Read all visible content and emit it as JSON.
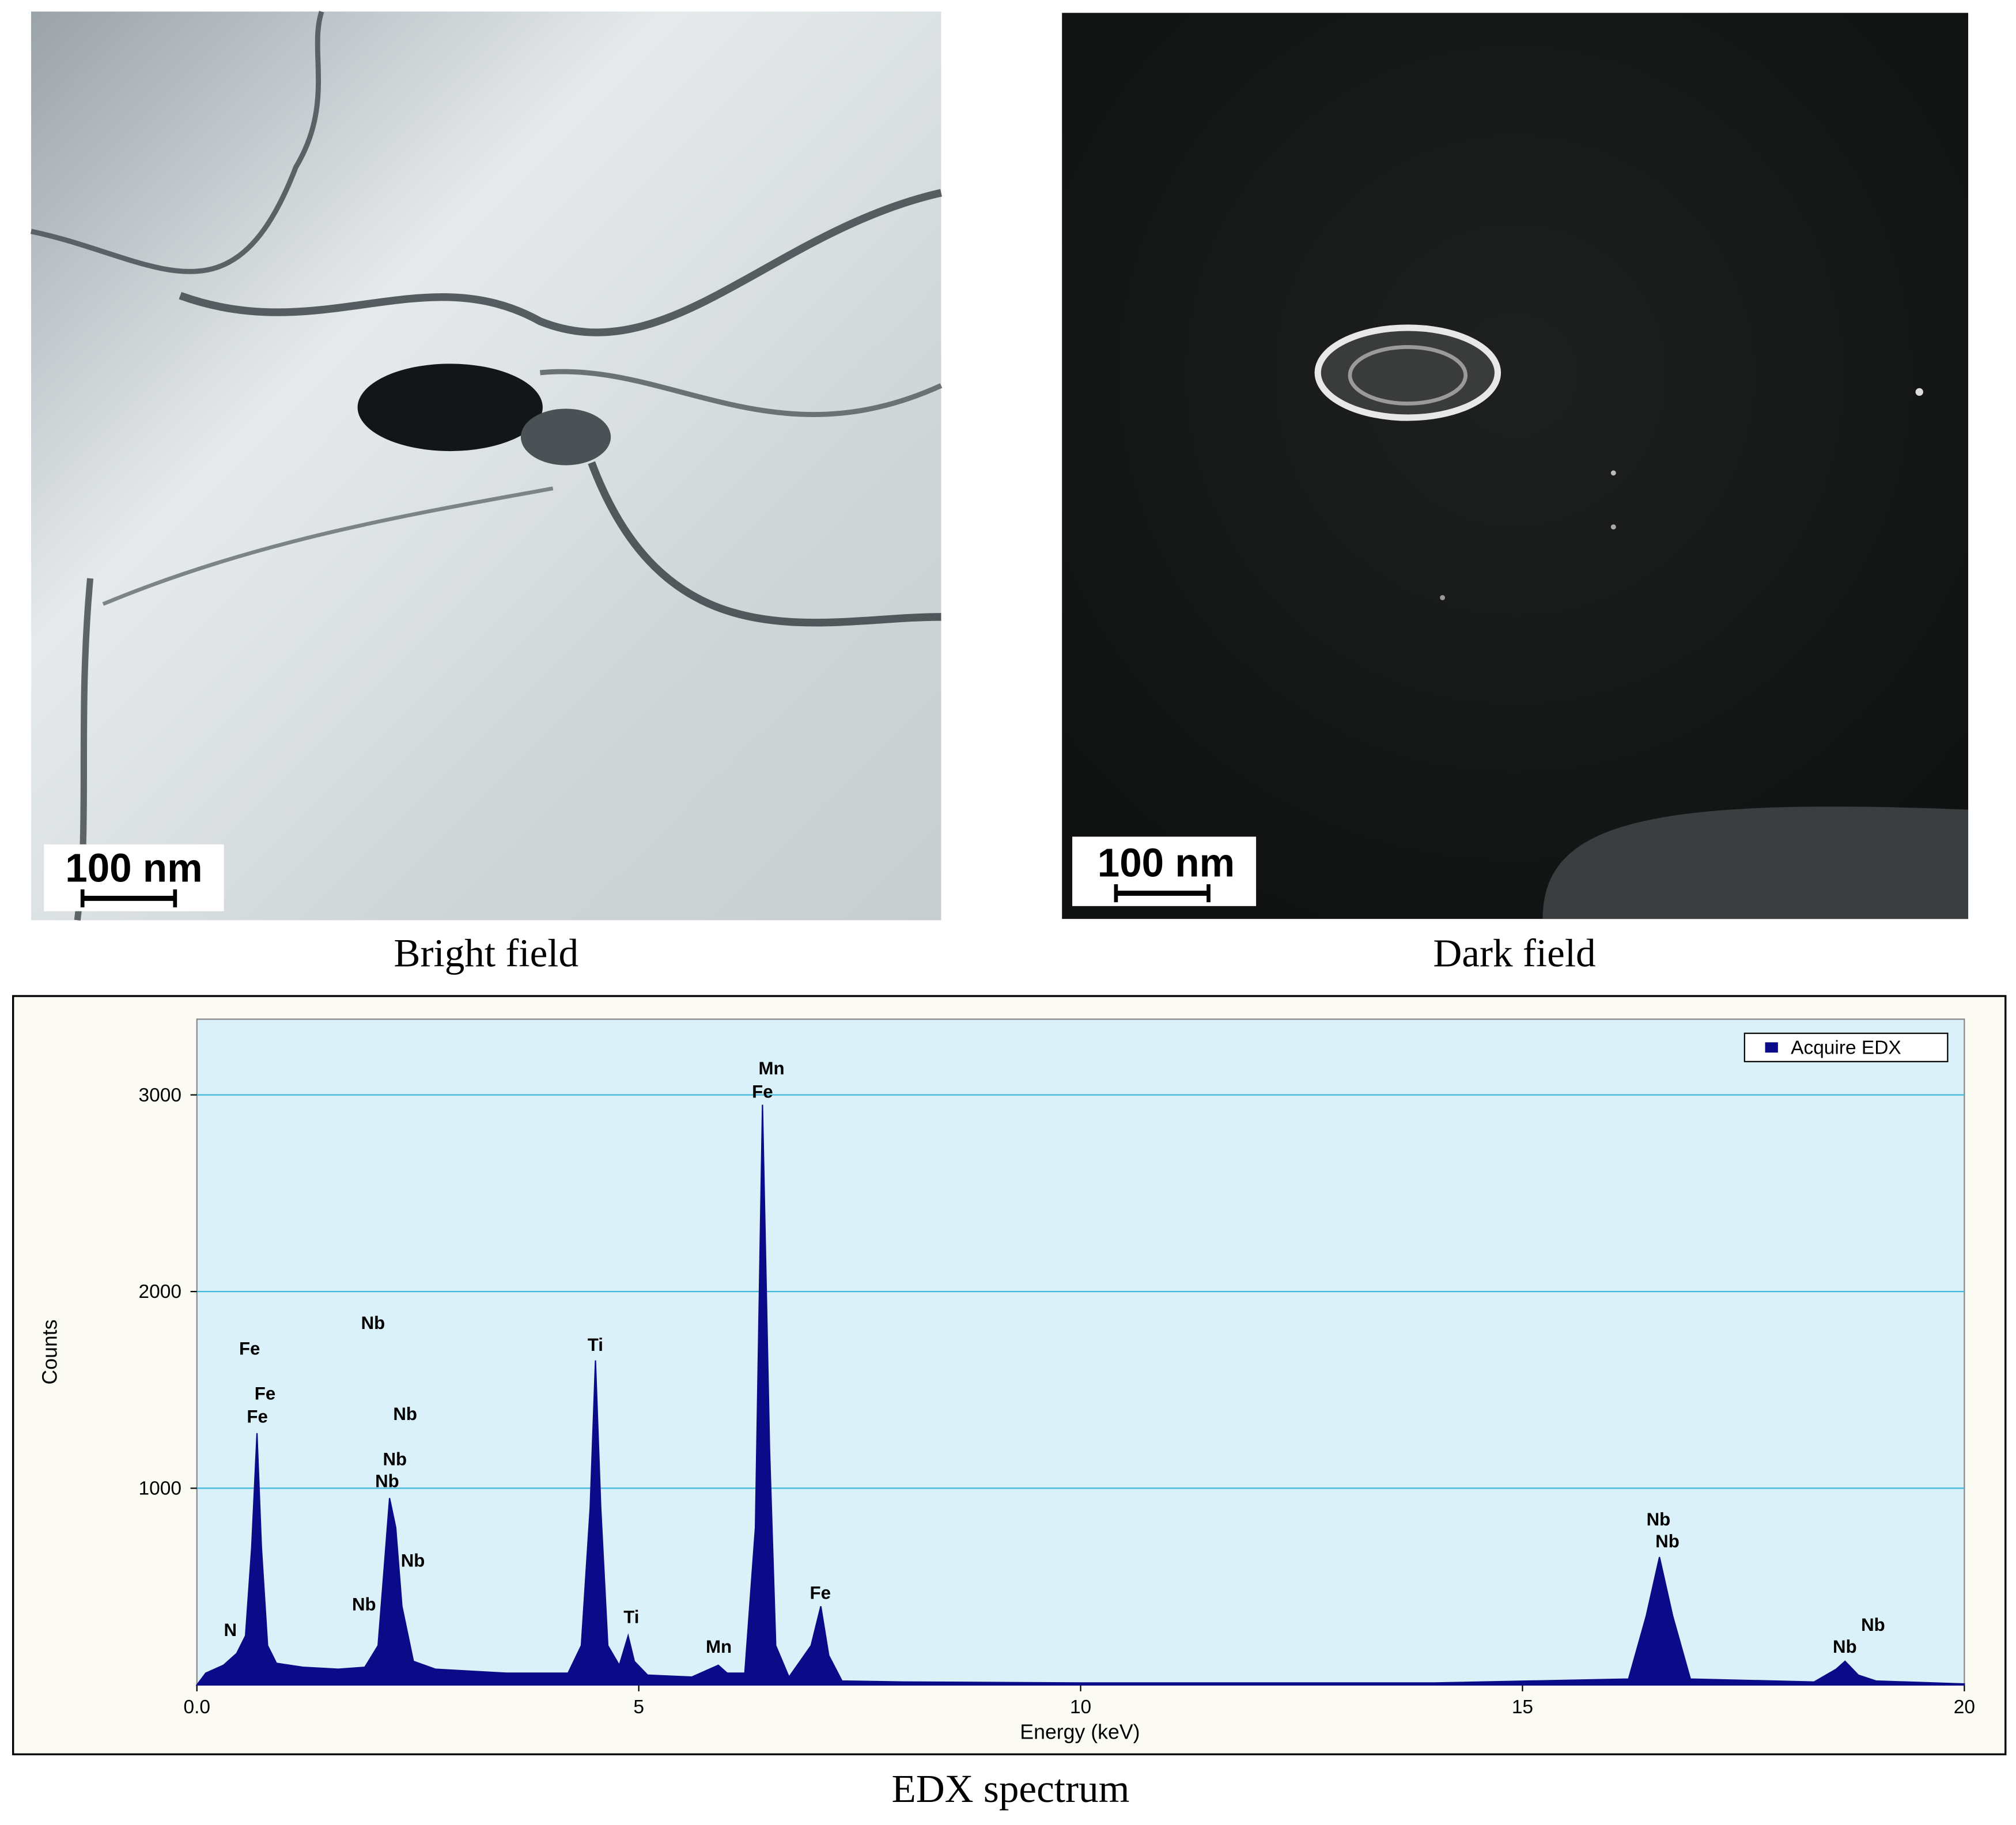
{
  "panels": [
    {
      "scale_bar": "100 nm",
      "caption": "Bright field"
    },
    {
      "scale_bar": "100 nm",
      "caption": "Dark field"
    }
  ],
  "spectrum_caption": "EDX spectrum",
  "chart_data": {
    "type": "area",
    "x_label": "Energy (keV)",
    "y_label": "Counts",
    "x": [
      0.0,
      0.1,
      0.3,
      0.45,
      0.55,
      0.62,
      0.68,
      0.73,
      0.8,
      0.9,
      1.2,
      1.6,
      1.9,
      2.05,
      2.12,
      2.18,
      2.25,
      2.32,
      2.45,
      2.7,
      3.5,
      4.2,
      4.35,
      4.45,
      4.51,
      4.57,
      4.65,
      4.78,
      4.88,
      4.95,
      5.1,
      5.6,
      5.9,
      6.0,
      6.2,
      6.32,
      6.4,
      6.48,
      6.55,
      6.7,
      6.95,
      7.06,
      7.15,
      7.3,
      8,
      10,
      14,
      16.2,
      16.4,
      16.55,
      16.7,
      16.9,
      18.3,
      18.55,
      18.65,
      18.8,
      19,
      20
    ],
    "series": [
      {
        "name": "Acquire EDX",
        "color": "#0b0b8a",
        "values": [
          0,
          60,
          100,
          160,
          250,
          700,
          1280,
          700,
          200,
          110,
          90,
          80,
          90,
          200,
          600,
          950,
          800,
          400,
          120,
          80,
          60,
          60,
          200,
          900,
          1650,
          900,
          200,
          100,
          250,
          120,
          50,
          40,
          100,
          60,
          60,
          800,
          2950,
          1200,
          200,
          40,
          200,
          400,
          150,
          20,
          15,
          10,
          10,
          30,
          350,
          650,
          350,
          30,
          15,
          80,
          120,
          50,
          20,
          5
        ]
      }
    ],
    "xlim": [
      0,
      20
    ],
    "ylim": [
      0,
      3385
    ],
    "xticks": [
      {
        "value": 0,
        "label": "0.0"
      },
      5,
      10,
      15,
      20
    ],
    "yticks": [
      1000,
      2000,
      3000
    ],
    "grid": true,
    "legend": "top-right",
    "annotations": [
      "Fe",
      "Nb",
      "Fe",
      "Fe",
      "Nb",
      "Nb",
      "Nb",
      "Nb",
      "Nb",
      "N",
      "Ti",
      "Ti",
      "Mn",
      "Mn",
      "Fe",
      "Fe",
      "Nb",
      "Nb",
      "Nb",
      "Nb"
    ]
  }
}
